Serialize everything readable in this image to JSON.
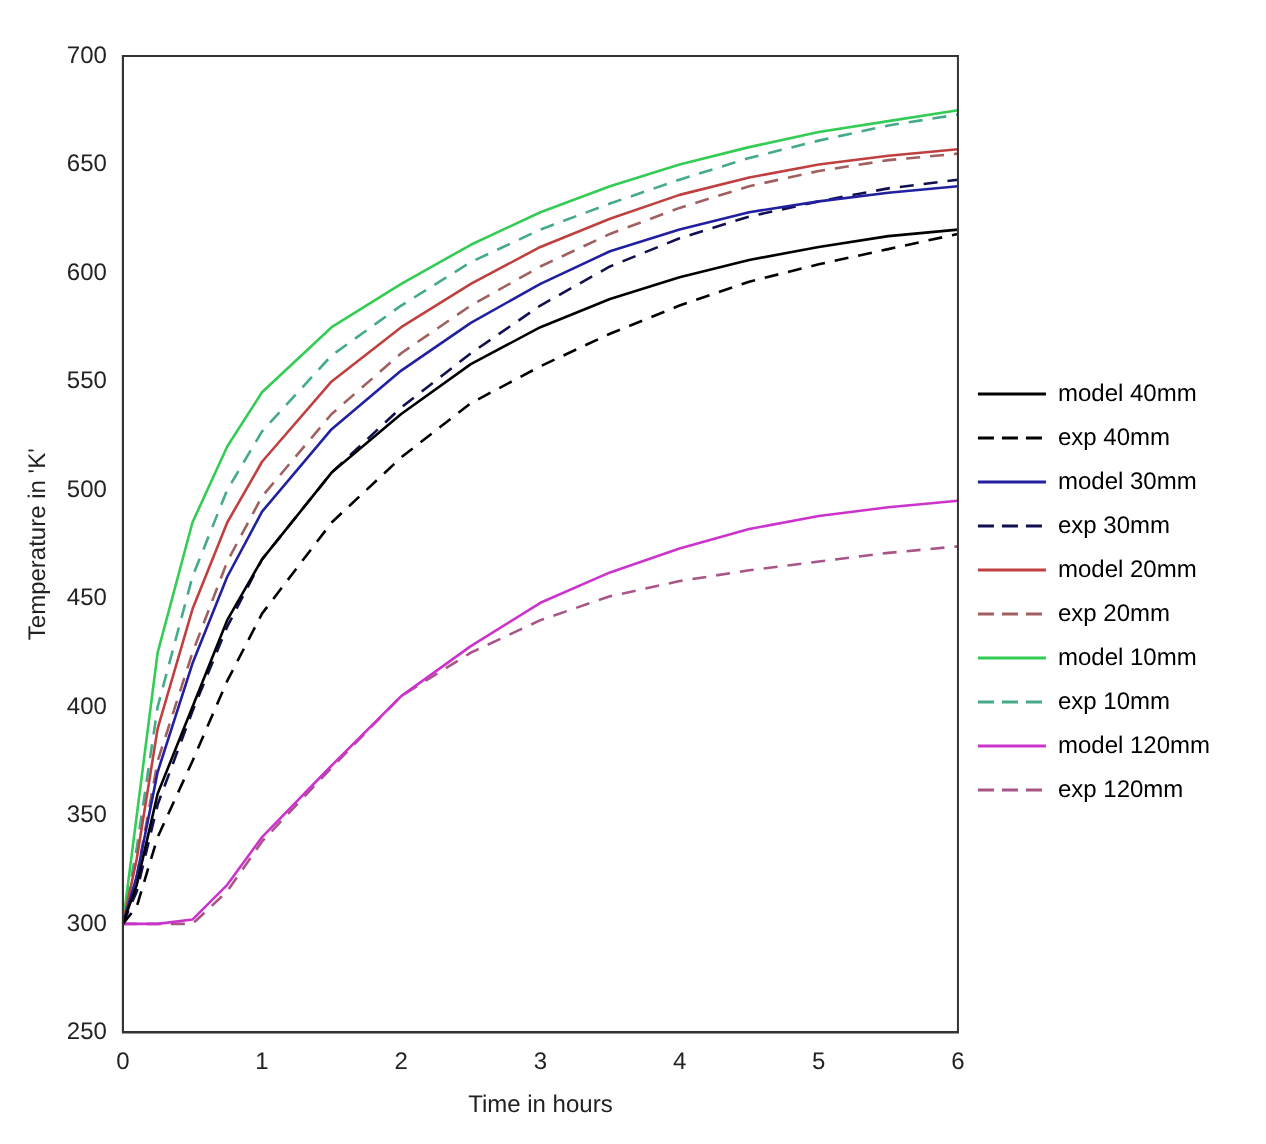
{
  "chart_data": {
    "type": "line",
    "xlabel": "Time in hours",
    "ylabel": "Temperature in 'K'",
    "x": [
      0,
      0.1,
      0.25,
      0.5,
      0.75,
      1,
      1.5,
      2,
      2.5,
      3,
      3.5,
      4,
      4.5,
      5,
      5.5,
      6
    ],
    "xlim": [
      0,
      6
    ],
    "xticks": [
      0,
      1,
      2,
      3,
      4,
      5,
      6
    ],
    "ylim": [
      250,
      700
    ],
    "yticks": [
      250,
      300,
      350,
      400,
      450,
      500,
      550,
      600,
      650,
      700
    ],
    "grid": false,
    "legend": "right",
    "marker": "none",
    "series": [
      {
        "name": "model 40mm",
        "color": "#000000",
        "line_style": "solid",
        "values": [
          300,
          318,
          360,
          400,
          440,
          468,
          508,
          535,
          558,
          575,
          588,
          598,
          606,
          612,
          617,
          620
        ]
      },
      {
        "name": "exp 40mm",
        "color": "#000000",
        "line_style": "dashed",
        "values": [
          300,
          308,
          340,
          375,
          412,
          443,
          485,
          515,
          540,
          557,
          572,
          585,
          596,
          604,
          611,
          618
        ]
      },
      {
        "name": "model 30mm",
        "color": "#2020a0",
        "line_style": "solid",
        "values": [
          300,
          322,
          370,
          420,
          460,
          490,
          528,
          555,
          577,
          595,
          610,
          620,
          628,
          633,
          637,
          640
        ]
      },
      {
        "name": "exp 30mm",
        "color": "#101050",
        "line_style": "dashed",
        "values": [
          300,
          315,
          355,
          398,
          437,
          468,
          508,
          538,
          563,
          585,
          603,
          616,
          626,
          633,
          639,
          643
        ]
      },
      {
        "name": "model 20mm",
        "color": "#c04040",
        "line_style": "solid",
        "values": [
          300,
          330,
          390,
          445,
          485,
          513,
          550,
          575,
          595,
          612,
          625,
          636,
          644,
          650,
          654,
          657
        ]
      },
      {
        "name": "exp 20mm",
        "color": "#a06060",
        "line_style": "dashed",
        "values": [
          300,
          322,
          375,
          425,
          467,
          497,
          535,
          563,
          585,
          603,
          618,
          630,
          640,
          647,
          652,
          655
        ]
      },
      {
        "name": "model 10mm",
        "color": "#33cc55",
        "line_style": "solid",
        "values": [
          300,
          350,
          425,
          485,
          520,
          545,
          575,
          595,
          613,
          628,
          640,
          650,
          658,
          665,
          670,
          675
        ]
      },
      {
        "name": "exp 10mm",
        "color": "#44aa88",
        "line_style": "dashed",
        "values": [
          300,
          335,
          400,
          460,
          500,
          527,
          562,
          585,
          605,
          620,
          632,
          643,
          653,
          661,
          668,
          673
        ]
      },
      {
        "name": "model 120mm",
        "color": "#cc33cc",
        "line_style": "solid",
        "values": [
          300,
          300,
          300,
          302,
          318,
          340,
          373,
          405,
          428,
          448,
          462,
          473,
          482,
          488,
          492,
          495
        ]
      },
      {
        "name": "exp 120mm",
        "color": "#aa5588",
        "line_style": "dashed",
        "values": [
          300,
          300,
          300,
          300,
          315,
          338,
          372,
          405,
          425,
          440,
          451,
          458,
          463,
          467,
          471,
          474
        ]
      }
    ]
  }
}
